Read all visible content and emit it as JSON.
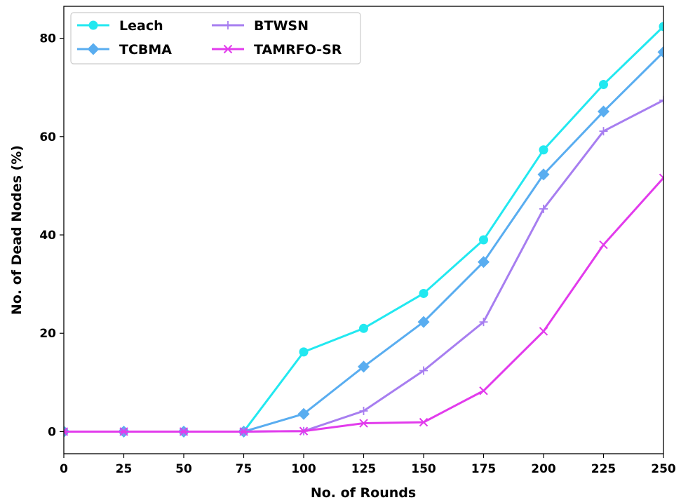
{
  "chart_data": {
    "type": "line",
    "title": "",
    "xlabel": "No. of Rounds",
    "ylabel": "No. of Dead Nodes (%)",
    "x": [
      0,
      25,
      50,
      75,
      100,
      125,
      150,
      175,
      200,
      225,
      250
    ],
    "xlim": [
      0,
      250
    ],
    "ylim": [
      -4.5,
      86.5
    ],
    "xticks": [
      "0",
      "25",
      "50",
      "75",
      "100",
      "125",
      "150",
      "175",
      "200",
      "225",
      "250"
    ],
    "yticks": [
      "0",
      "20",
      "40",
      "60",
      "80"
    ],
    "grid": false,
    "legend_position": "top-left",
    "legend_columns": 2,
    "series": [
      {
        "name": "Leach",
        "color": "#22e8f0",
        "marker": "circle",
        "values": [
          0,
          0,
          0,
          0,
          16.2,
          21.0,
          28.1,
          39.0,
          57.3,
          70.6,
          82.4
        ]
      },
      {
        "name": "TCBMA",
        "color": "#59adf0",
        "marker": "diamond",
        "values": [
          0,
          0,
          0,
          0,
          3.6,
          13.2,
          22.3,
          34.5,
          52.3,
          65.1,
          77.2
        ]
      },
      {
        "name": "BTWSN",
        "color": "#a77ef0",
        "marker": "plus",
        "values": [
          0,
          0,
          0,
          0,
          0.1,
          4.2,
          12.4,
          22.3,
          45.3,
          61.1,
          67.4
        ]
      },
      {
        "name": "TAMRFO-SR",
        "color": "#e23bec",
        "marker": "x",
        "values": [
          0,
          0,
          0,
          0,
          0.1,
          1.7,
          1.9,
          8.3,
          20.4,
          38.0,
          51.6
        ]
      }
    ]
  }
}
